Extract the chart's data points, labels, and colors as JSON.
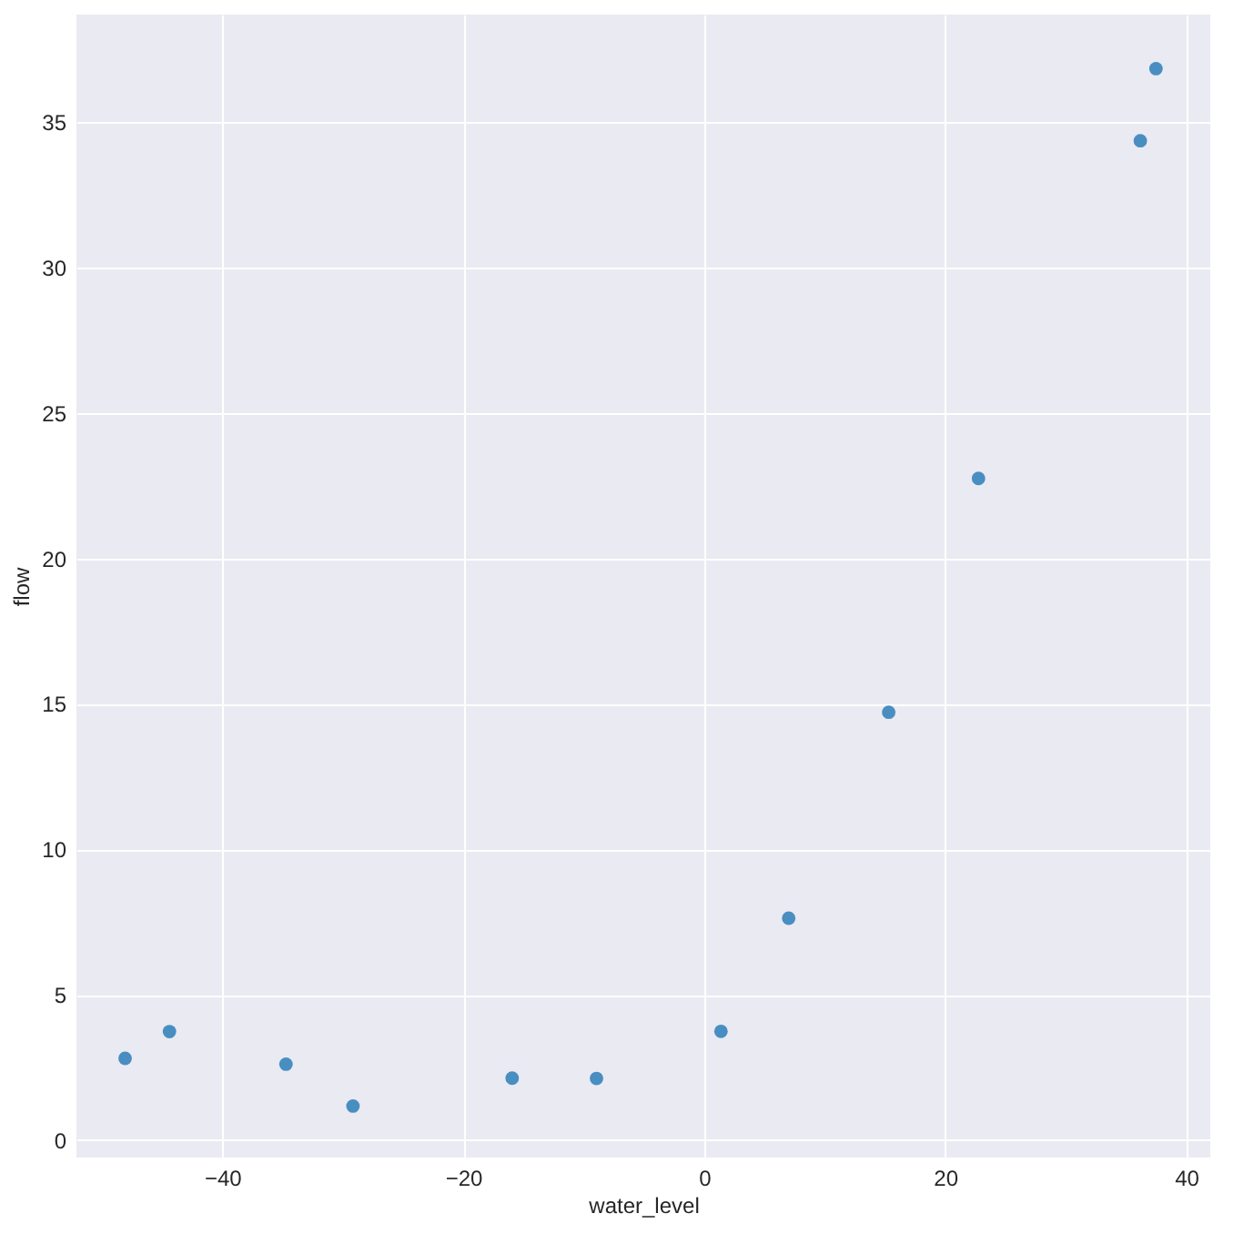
{
  "chart_data": {
    "type": "scatter",
    "xlabel": "water_level",
    "ylabel": "flow",
    "x": [
      -15.94,
      -29.15,
      36.19,
      37.49,
      -48.06,
      -8.94,
      15.31,
      -34.71,
      1.39,
      -44.38,
      7.01,
      22.76
    ],
    "series": [
      {
        "color": "#1f77b4",
        "values": [
          2.13,
          1.17,
          34.36,
          36.84,
          2.81,
          2.12,
          14.71,
          2.61,
          3.74,
          3.73,
          7.63,
          22.75
        ]
      }
    ],
    "xlim": [
      -52.1,
      42.0
    ],
    "ylim": [
      -0.6,
      38.7
    ],
    "xticks": [
      -40,
      -20,
      0,
      20,
      40
    ],
    "yticks": [
      0,
      5,
      10,
      15,
      20,
      25,
      30,
      35
    ],
    "grid": true,
    "marker": "circle",
    "legend": false
  }
}
